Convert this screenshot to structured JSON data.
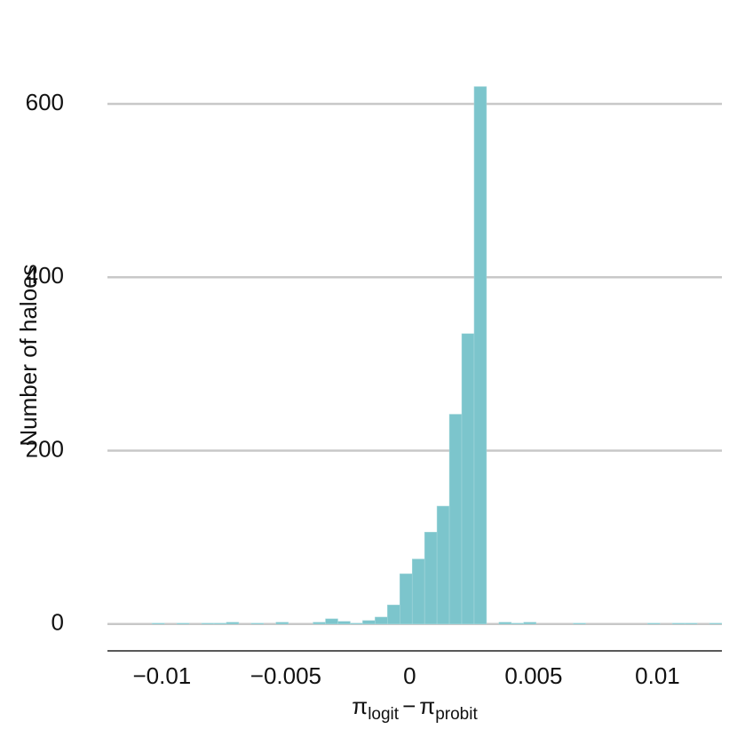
{
  "chart_data": {
    "type": "histogram",
    "ylabel": "Number of haloes",
    "xlabel": [
      "π",
      "logit",
      "−",
      "π",
      "probit"
    ],
    "bins": [
      -0.0104,
      -0.0099,
      -0.0094,
      -0.0089,
      -0.0084,
      -0.0079,
      -0.0074,
      -0.0069,
      -0.0064,
      -0.0059,
      -0.0054,
      -0.0049,
      -0.0044,
      -0.0039,
      -0.0034,
      -0.0029,
      -0.0024,
      -0.0019,
      -0.0014,
      -0.0009,
      -0.0004,
      0.0001,
      0.0006,
      0.0011,
      0.0016,
      0.0021,
      0.0026,
      0.0031,
      0.0036,
      0.0041,
      0.0046,
      0.0051,
      0.0056,
      0.0061,
      0.0066,
      0.0071,
      0.0076,
      0.0081,
      0.0086,
      0.0091,
      0.0096,
      0.0101,
      0.0106,
      0.0111,
      0.0116,
      0.0121,
      0.0126
    ],
    "values": [
      1,
      0,
      1,
      0,
      1,
      1,
      2,
      0,
      1,
      0,
      2,
      0,
      0,
      2,
      6,
      3,
      1,
      4,
      8,
      22,
      58,
      75,
      106,
      136,
      242,
      335,
      620,
      0,
      2,
      1,
      2,
      0,
      0,
      0,
      1,
      0,
      0,
      0,
      0,
      0,
      1,
      0,
      1,
      1,
      0,
      1
    ],
    "color": "#7cc5cc",
    "xlim": [
      -0.0122,
      0.0126
    ],
    "xticks": [
      {
        "value": -0.01,
        "label": "−0.01"
      },
      {
        "value": -0.005,
        "label": "−0.005"
      },
      0,
      0.005,
      0.01
    ],
    "ylim": [
      -31,
      640
    ],
    "yticks": [
      0,
      200,
      400,
      600
    ],
    "grid": true
  }
}
